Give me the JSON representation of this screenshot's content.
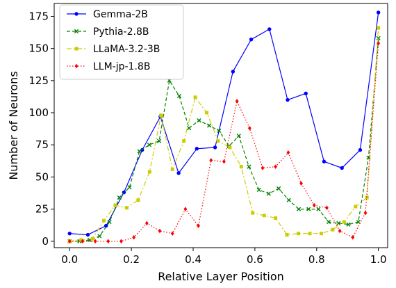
{
  "chart_data": {
    "type": "line",
    "xlabel": "Relative Layer Position",
    "ylabel": "Number of Neurons",
    "xlim": [
      -0.05,
      1.03
    ],
    "ylim": [
      -5,
      185
    ],
    "xticks": [
      0.0,
      0.2,
      0.4,
      0.6,
      0.8,
      1.0
    ],
    "xtick_labels": [
      "0.0",
      "0.2",
      "0.4",
      "0.6",
      "0.8",
      "1.0"
    ],
    "yticks": [
      0,
      25,
      50,
      75,
      100,
      125,
      150,
      175
    ],
    "ytick_labels": [
      "0",
      "25",
      "50",
      "75",
      "100",
      "125",
      "150",
      "175"
    ],
    "grid": false,
    "legend_position": "top-left",
    "series": [
      {
        "name": "Gemma-2B",
        "color": "#0000ff",
        "linestyle": "solid",
        "marker": "circle",
        "points": [
          [
            0.0,
            6
          ],
          [
            0.059,
            5
          ],
          [
            0.118,
            12
          ],
          [
            0.176,
            38
          ],
          [
            0.235,
            71
          ],
          [
            0.294,
            97
          ],
          [
            0.353,
            53
          ],
          [
            0.412,
            72
          ],
          [
            0.471,
            73
          ],
          [
            0.529,
            132
          ],
          [
            0.588,
            157
          ],
          [
            0.647,
            165
          ],
          [
            0.706,
            110
          ],
          [
            0.765,
            115
          ],
          [
            0.824,
            62
          ],
          [
            0.882,
            57
          ],
          [
            0.941,
            71
          ],
          [
            1.0,
            178
          ]
        ]
      },
      {
        "name": "Pythia-2.8B",
        "color": "#008000",
        "linestyle": "dashed",
        "marker": "x",
        "points": [
          [
            0.0,
            0
          ],
          [
            0.032,
            0
          ],
          [
            0.065,
            1
          ],
          [
            0.097,
            4
          ],
          [
            0.129,
            15
          ],
          [
            0.161,
            34
          ],
          [
            0.194,
            42
          ],
          [
            0.226,
            70
          ],
          [
            0.258,
            75
          ],
          [
            0.29,
            78
          ],
          [
            0.323,
            125
          ],
          [
            0.355,
            113
          ],
          [
            0.387,
            88
          ],
          [
            0.419,
            94
          ],
          [
            0.452,
            90
          ],
          [
            0.484,
            86
          ],
          [
            0.516,
            74
          ],
          [
            0.548,
            82
          ],
          [
            0.581,
            58
          ],
          [
            0.613,
            40
          ],
          [
            0.645,
            37
          ],
          [
            0.677,
            41
          ],
          [
            0.71,
            32
          ],
          [
            0.742,
            25
          ],
          [
            0.774,
            25
          ],
          [
            0.806,
            25
          ],
          [
            0.839,
            15
          ],
          [
            0.871,
            14
          ],
          [
            0.903,
            13
          ],
          [
            0.935,
            15
          ],
          [
            0.968,
            65
          ],
          [
            1.0,
            158
          ]
        ]
      },
      {
        "name": "LLaMA-3.2-3B",
        "color": "#cccc00",
        "linestyle": "dashdot",
        "marker": "square",
        "points": [
          [
            0.0,
            0
          ],
          [
            0.037,
            1
          ],
          [
            0.074,
            2
          ],
          [
            0.111,
            16
          ],
          [
            0.148,
            28
          ],
          [
            0.185,
            26
          ],
          [
            0.222,
            32
          ],
          [
            0.259,
            54
          ],
          [
            0.296,
            98
          ],
          [
            0.333,
            56
          ],
          [
            0.37,
            78
          ],
          [
            0.407,
            112
          ],
          [
            0.444,
            100
          ],
          [
            0.481,
            78
          ],
          [
            0.519,
            73
          ],
          [
            0.556,
            58
          ],
          [
            0.593,
            22
          ],
          [
            0.63,
            20
          ],
          [
            0.667,
            18
          ],
          [
            0.704,
            5
          ],
          [
            0.741,
            6
          ],
          [
            0.778,
            6
          ],
          [
            0.815,
            6
          ],
          [
            0.852,
            9
          ],
          [
            0.889,
            15
          ],
          [
            0.926,
            27
          ],
          [
            0.963,
            34
          ],
          [
            1.0,
            166
          ]
        ]
      },
      {
        "name": "LLM-jp-1.8B",
        "color": "#ff0000",
        "linestyle": "dotted",
        "marker": "diamond",
        "points": [
          [
            0.0,
            0
          ],
          [
            0.042,
            0
          ],
          [
            0.083,
            0
          ],
          [
            0.125,
            0
          ],
          [
            0.167,
            0
          ],
          [
            0.208,
            3
          ],
          [
            0.25,
            14
          ],
          [
            0.292,
            8
          ],
          [
            0.333,
            6
          ],
          [
            0.375,
            25
          ],
          [
            0.417,
            12
          ],
          [
            0.458,
            63
          ],
          [
            0.5,
            62
          ],
          [
            0.542,
            109
          ],
          [
            0.583,
            88
          ],
          [
            0.625,
            57
          ],
          [
            0.667,
            58
          ],
          [
            0.708,
            69
          ],
          [
            0.75,
            45
          ],
          [
            0.792,
            28
          ],
          [
            0.833,
            26
          ],
          [
            0.875,
            8
          ],
          [
            0.917,
            3
          ],
          [
            0.958,
            22
          ],
          [
            1.0,
            154
          ]
        ]
      }
    ]
  }
}
